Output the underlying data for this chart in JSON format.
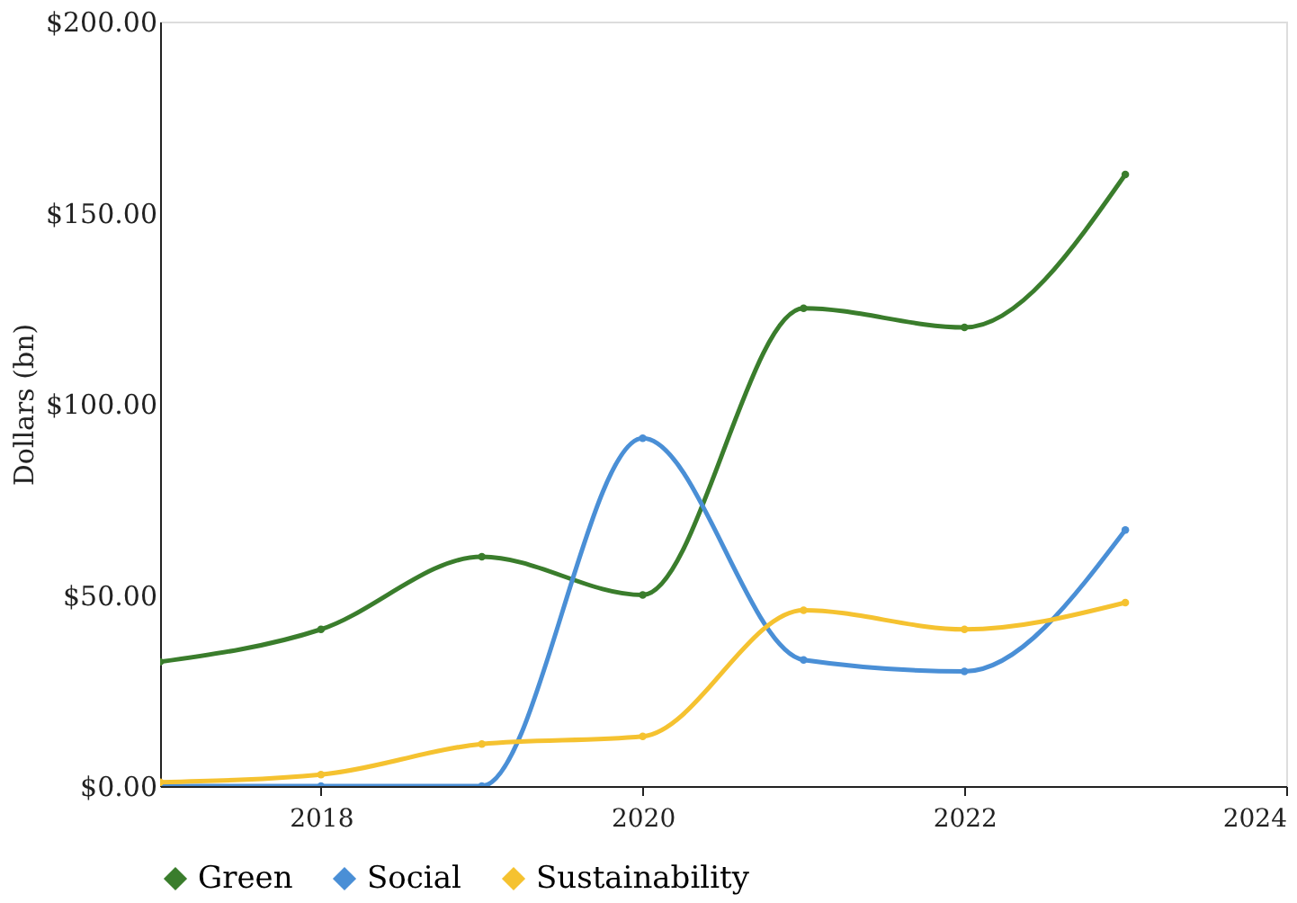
{
  "chart_data": {
    "type": "line",
    "ylabel": "Dollars (bn)",
    "x": [
      2017,
      2018,
      2019,
      2020,
      2021,
      2022,
      2023
    ],
    "series": [
      {
        "name": "Green",
        "color": "#3a7d2c",
        "values": [
          32.5,
          41,
          60,
          50,
          125,
          120,
          160
        ]
      },
      {
        "name": "Social",
        "color": "#4a8fd6",
        "values": [
          0,
          0,
          0,
          91,
          33,
          30,
          67
        ]
      },
      {
        "name": "Sustainability",
        "color": "#f5c230",
        "values": [
          1,
          3,
          11,
          13,
          46,
          41,
          48
        ]
      }
    ],
    "xlim": [
      2017,
      2024
    ],
    "xticks": [
      2018,
      2020,
      2022,
      2024
    ],
    "ylim": [
      0,
      200
    ],
    "yticks": [
      {
        "value": 0,
        "label": "$0.00"
      },
      {
        "value": 50,
        "label": "$50.00"
      },
      {
        "value": 100,
        "label": "$100.00"
      },
      {
        "value": 150,
        "label": "$150.00"
      },
      {
        "value": 200,
        "label": "$200.00"
      }
    ],
    "grid": false,
    "legend": "bottom",
    "marker": "circle",
    "line_style": "solid"
  }
}
